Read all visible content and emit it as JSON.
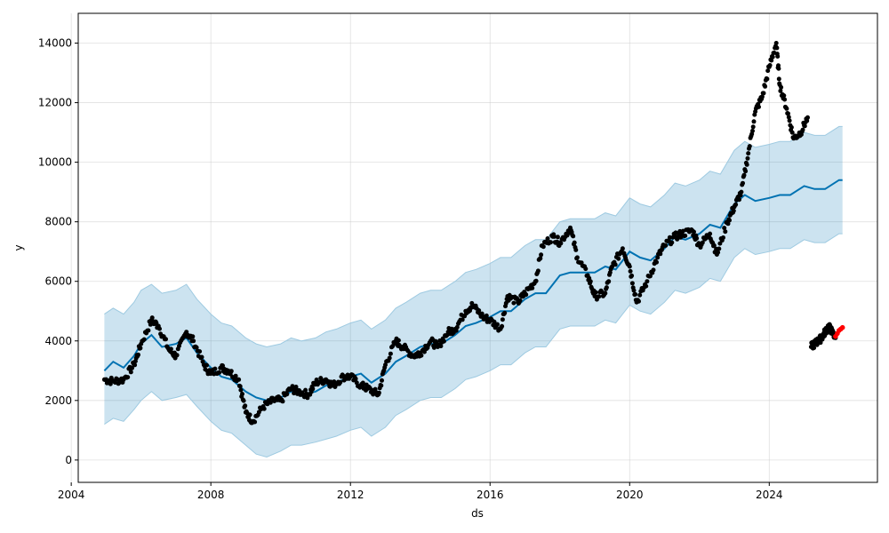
{
  "chart_data": {
    "type": "line",
    "title": "",
    "xlabel": "ds",
    "ylabel": "y",
    "xlim": [
      2004.2,
      2027.1
    ],
    "ylim": [
      -750,
      15000
    ],
    "x_ticks": [
      2004,
      2008,
      2012,
      2016,
      2020,
      2024
    ],
    "x_tick_labels": [
      "2004",
      "2008",
      "2012",
      "2016",
      "2020",
      "2024"
    ],
    "y_ticks": [
      0,
      2000,
      4000,
      6000,
      8000,
      10000,
      12000,
      14000
    ],
    "y_tick_labels": [
      "0",
      "2000",
      "4000",
      "6000",
      "8000",
      "10000",
      "12000",
      "14000"
    ],
    "grid": true,
    "colors": {
      "observed": "#000000",
      "forecast": "#0072B2",
      "interval": "#0072B2",
      "interval_opacity": 0.2,
      "highlight": "#ff0000"
    },
    "series": [
      {
        "kind": "observed_points",
        "x": [
          2004.95,
          2005.2,
          2005.5,
          2005.8,
          2006.0,
          2006.3,
          2006.5,
          2006.8,
          2007.0,
          2007.3,
          2007.5,
          2007.8,
          2008.0,
          2008.3,
          2008.5,
          2008.8,
          2009.0,
          2009.2,
          2009.5,
          2009.8,
          2010.0,
          2010.3,
          2010.5,
          2010.8,
          2011.0,
          2011.3,
          2011.5,
          2011.8,
          2012.0,
          2012.3,
          2012.5,
          2012.8,
          2013.0,
          2013.3,
          2013.5,
          2013.8,
          2014.0,
          2014.3,
          2014.5,
          2014.8,
          2015.0,
          2015.3,
          2015.5,
          2015.8,
          2016.0,
          2016.3,
          2016.5,
          2016.8,
          2017.0,
          2017.3,
          2017.5,
          2017.8,
          2018.0,
          2018.3,
          2018.5,
          2018.8,
          2019.0,
          2019.3,
          2019.5,
          2019.8,
          2020.0,
          2020.2,
          2020.5,
          2020.8,
          2021.0,
          2021.3,
          2021.5,
          2021.8,
          2022.0,
          2022.3,
          2022.5,
          2022.8,
          2023.0,
          2023.2,
          2023.4,
          2023.6,
          2023.8,
          2024.0,
          2024.2,
          2024.3,
          2024.5,
          2024.7,
          2024.9,
          2025.1
        ],
        "y": [
          2700,
          2650,
          2700,
          3200,
          3900,
          4700,
          4500,
          3700,
          3500,
          4300,
          4000,
          3200,
          2900,
          3100,
          3000,
          2700,
          1600,
          1300,
          1800,
          2000,
          2000,
          2400,
          2300,
          2200,
          2600,
          2700,
          2500,
          2800,
          2800,
          2500,
          2400,
          2200,
          3200,
          4000,
          3800,
          3500,
          3600,
          4000,
          3800,
          4300,
          4400,
          5000,
          5200,
          4800,
          4700,
          4400,
          5500,
          5300,
          5600,
          6000,
          7200,
          7500,
          7300,
          7800,
          6800,
          6200,
          5500,
          5600,
          6500,
          7100,
          6500,
          5300,
          6000,
          6800,
          7200,
          7500,
          7600,
          7700,
          7200,
          7600,
          6900,
          8000,
          8500,
          9000,
          10300,
          11700,
          12200,
          13200,
          14000,
          12600,
          11800,
          10800,
          11000,
          11500
        ]
      },
      {
        "kind": "observed_points",
        "x": [
          2025.2,
          2025.3,
          2025.4,
          2025.5,
          2025.6,
          2025.7,
          2025.8,
          2025.9
        ],
        "y": [
          3800,
          3900,
          4000,
          4100,
          4300,
          4500,
          4300,
          4100
        ]
      },
      {
        "kind": "highlight_points",
        "x": [
          2025.9,
          2025.95,
          2026.0,
          2026.05,
          2026.1
        ],
        "y": [
          4150,
          4250,
          4350,
          4400,
          4450
        ]
      },
      {
        "kind": "forecast_line",
        "x": [
          2004.95,
          2005.2,
          2005.5,
          2005.8,
          2006.0,
          2006.3,
          2006.6,
          2007.0,
          2007.3,
          2007.6,
          2008.0,
          2008.3,
          2008.6,
          2009.0,
          2009.3,
          2009.6,
          2010.0,
          2010.3,
          2010.6,
          2011.0,
          2011.3,
          2011.6,
          2012.0,
          2012.3,
          2012.6,
          2013.0,
          2013.3,
          2013.6,
          2014.0,
          2014.3,
          2014.6,
          2015.0,
          2015.3,
          2015.6,
          2016.0,
          2016.3,
          2016.6,
          2017.0,
          2017.3,
          2017.6,
          2018.0,
          2018.3,
          2018.6,
          2019.0,
          2019.3,
          2019.6,
          2020.0,
          2020.3,
          2020.6,
          2021.0,
          2021.3,
          2021.6,
          2022.0,
          2022.3,
          2022.6,
          2023.0,
          2023.3,
          2023.6,
          2024.0,
          2024.3,
          2024.6,
          2025.0,
          2025.3,
          2025.6,
          2026.0,
          2026.1
        ],
        "y": [
          3000,
          3300,
          3100,
          3500,
          3900,
          4200,
          3800,
          3900,
          4100,
          3600,
          3100,
          2800,
          2700,
          2300,
          2100,
          2000,
          2100,
          2300,
          2200,
          2300,
          2500,
          2600,
          2800,
          2900,
          2600,
          2900,
          3300,
          3500,
          3800,
          3900,
          3900,
          4200,
          4500,
          4600,
          4800,
          5000,
          5000,
          5400,
          5600,
          5600,
          6200,
          6300,
          6300,
          6300,
          6500,
          6400,
          7000,
          6800,
          6700,
          7100,
          7500,
          7400,
          7600,
          7900,
          7800,
          8600,
          8900,
          8700,
          8800,
          8900,
          8900,
          9200,
          9100,
          9100,
          9400,
          9400
        ]
      },
      {
        "kind": "interval_upper",
        "x": [
          2004.95,
          2005.2,
          2005.5,
          2005.8,
          2006.0,
          2006.3,
          2006.6,
          2007.0,
          2007.3,
          2007.6,
          2008.0,
          2008.3,
          2008.6,
          2009.0,
          2009.3,
          2009.6,
          2010.0,
          2010.3,
          2010.6,
          2011.0,
          2011.3,
          2011.6,
          2012.0,
          2012.3,
          2012.6,
          2013.0,
          2013.3,
          2013.6,
          2014.0,
          2014.3,
          2014.6,
          2015.0,
          2015.3,
          2015.6,
          2016.0,
          2016.3,
          2016.6,
          2017.0,
          2017.3,
          2017.6,
          2018.0,
          2018.3,
          2018.6,
          2019.0,
          2019.3,
          2019.6,
          2020.0,
          2020.3,
          2020.6,
          2021.0,
          2021.3,
          2021.6,
          2022.0,
          2022.3,
          2022.6,
          2023.0,
          2023.3,
          2023.6,
          2024.0,
          2024.3,
          2024.6,
          2025.0,
          2025.3,
          2025.6,
          2026.0,
          2026.1
        ],
        "y": [
          4900,
          5100,
          4900,
          5300,
          5700,
          5900,
          5600,
          5700,
          5900,
          5400,
          4900,
          4600,
          4500,
          4100,
          3900,
          3800,
          3900,
          4100,
          4000,
          4100,
          4300,
          4400,
          4600,
          4700,
          4400,
          4700,
          5100,
          5300,
          5600,
          5700,
          5700,
          6000,
          6300,
          6400,
          6600,
          6800,
          6800,
          7200,
          7400,
          7400,
          8000,
          8100,
          8100,
          8100,
          8300,
          8200,
          8800,
          8600,
          8500,
          8900,
          9300,
          9200,
          9400,
          9700,
          9600,
          10400,
          10700,
          10500,
          10600,
          10700,
          10700,
          11000,
          10900,
          10900,
          11200,
          11200
        ]
      },
      {
        "kind": "interval_lower",
        "x": [
          2004.95,
          2005.2,
          2005.5,
          2005.8,
          2006.0,
          2006.3,
          2006.6,
          2007.0,
          2007.3,
          2007.6,
          2008.0,
          2008.3,
          2008.6,
          2009.0,
          2009.3,
          2009.6,
          2010.0,
          2010.3,
          2010.6,
          2011.0,
          2011.3,
          2011.6,
          2012.0,
          2012.3,
          2012.6,
          2013.0,
          2013.3,
          2013.6,
          2014.0,
          2014.3,
          2014.6,
          2015.0,
          2015.3,
          2015.6,
          2016.0,
          2016.3,
          2016.6,
          2017.0,
          2017.3,
          2017.6,
          2018.0,
          2018.3,
          2018.6,
          2019.0,
          2019.3,
          2019.6,
          2020.0,
          2020.3,
          2020.6,
          2021.0,
          2021.3,
          2021.6,
          2022.0,
          2022.3,
          2022.6,
          2023.0,
          2023.3,
          2023.6,
          2024.0,
          2024.3,
          2024.6,
          2025.0,
          2025.3,
          2025.6,
          2026.0,
          2026.1
        ],
        "y": [
          1200,
          1400,
          1300,
          1700,
          2000,
          2300,
          2000,
          2100,
          2200,
          1800,
          1300,
          1000,
          900,
          500,
          200,
          100,
          300,
          500,
          500,
          600,
          700,
          800,
          1000,
          1100,
          800,
          1100,
          1500,
          1700,
          2000,
          2100,
          2100,
          2400,
          2700,
          2800,
          3000,
          3200,
          3200,
          3600,
          3800,
          3800,
          4400,
          4500,
          4500,
          4500,
          4700,
          4600,
          5200,
          5000,
          4900,
          5300,
          5700,
          5600,
          5800,
          6100,
          6000,
          6800,
          7100,
          6900,
          7000,
          7100,
          7100,
          7400,
          7300,
          7300,
          7600,
          7600
        ]
      }
    ]
  }
}
